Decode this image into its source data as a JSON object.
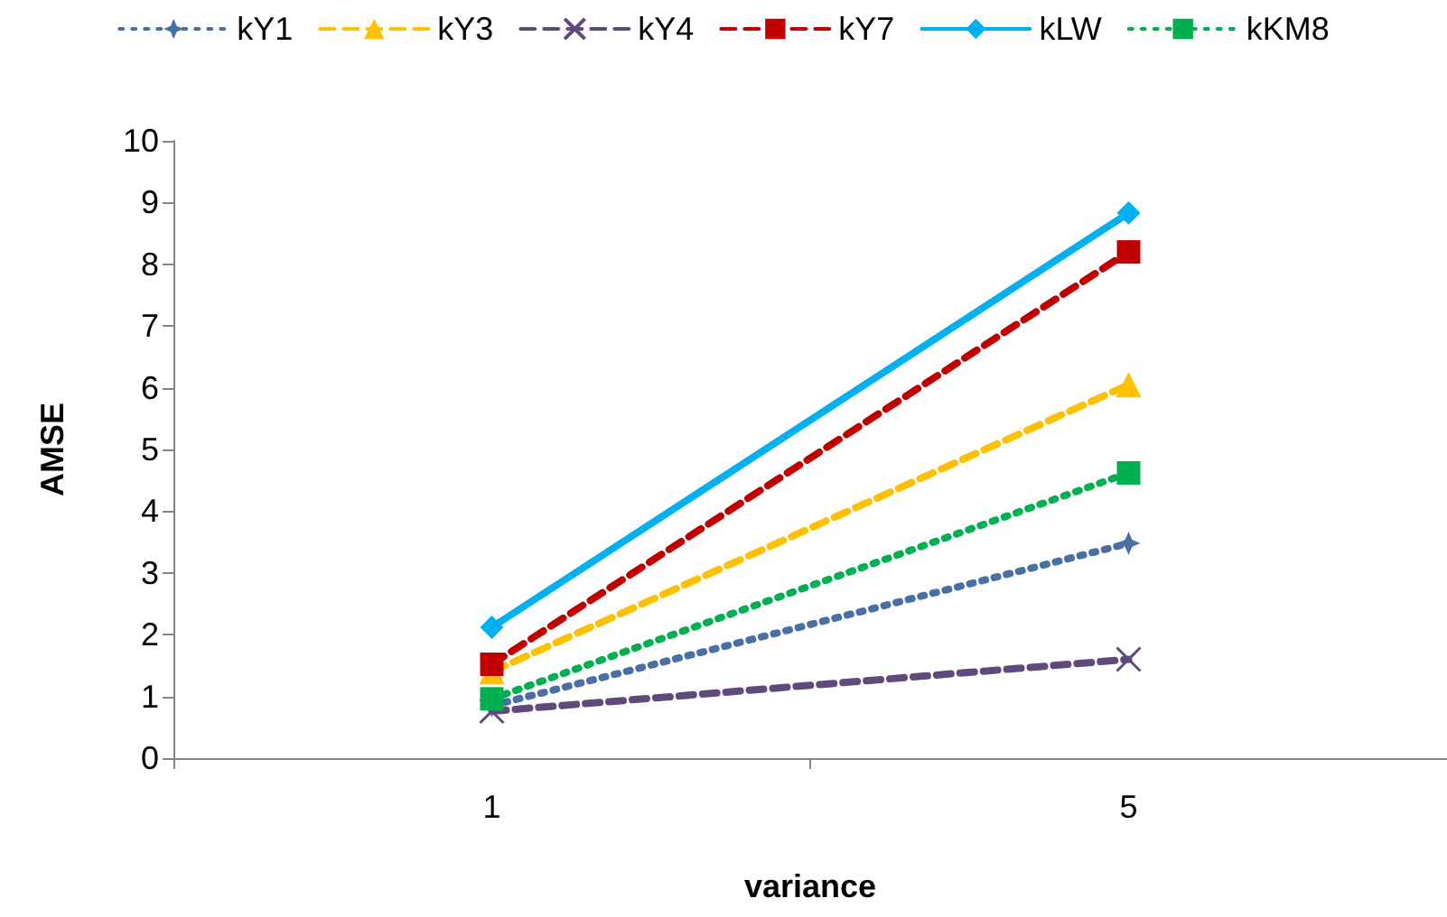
{
  "chart_data": {
    "type": "line",
    "xlabel": "variance",
    "ylabel": "AMSE",
    "categories": [
      "1",
      "5"
    ],
    "ylim": [
      0,
      10
    ],
    "yticks": [
      0,
      1,
      2,
      3,
      4,
      5,
      6,
      7,
      8,
      9,
      10
    ],
    "grid": false,
    "legend": "top",
    "series": [
      {
        "name": "kY1",
        "color": "#4a6fa5",
        "values": [
          0.85,
          3.48
        ],
        "marker": "star",
        "line_style": "dotted"
      },
      {
        "name": "kY3",
        "color": "#ffc000",
        "values": [
          1.4,
          6.05
        ],
        "marker": "triangle",
        "line_style": "dashed"
      },
      {
        "name": "kY4",
        "color": "#604a7b",
        "values": [
          0.76,
          1.6
        ],
        "marker": "cross",
        "line_style": "dashed"
      },
      {
        "name": "kY7",
        "color": "#c00000",
        "values": [
          1.52,
          8.2
        ],
        "marker": "square",
        "line_style": "dashed"
      },
      {
        "name": "kLW",
        "color": "#00b0f0",
        "values": [
          2.12,
          8.83
        ],
        "marker": "diamond",
        "line_style": "solid"
      },
      {
        "name": "kKM8",
        "color": "#00b050",
        "values": [
          0.96,
          4.62
        ],
        "marker": "square",
        "line_style": "dotted"
      }
    ]
  }
}
